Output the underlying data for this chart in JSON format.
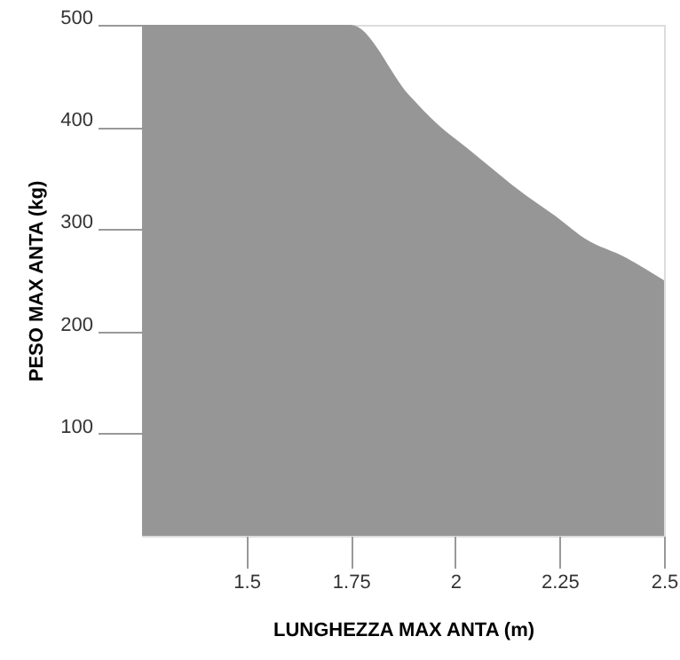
{
  "chart_data": {
    "type": "area",
    "xlabel": "LUNGHEZZA MAX ANTA (m)",
    "ylabel": "PESO MAX ANTA (kg)",
    "x": [
      1.25,
      1.75,
      1.89,
      1.96,
      2.03,
      2.17,
      2.24,
      2.31,
      2.41,
      2.5
    ],
    "series": [
      {
        "color": "#969696",
        "values": [
          500,
          500,
          431,
          402,
          379,
          333,
          313,
          291,
          272,
          250
        ]
      }
    ],
    "xlim": [
      1.25,
      2.5
    ],
    "xticks": [
      1.5,
      1.75,
      2,
      2.25,
      2.5
    ],
    "ylim": [
      0,
      500
    ],
    "yticks": [
      100,
      200,
      300,
      400,
      500
    ],
    "grid": false
  }
}
